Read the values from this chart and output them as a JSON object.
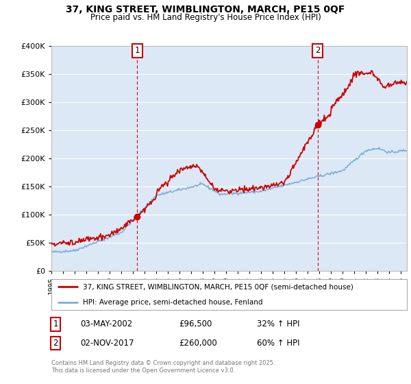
{
  "title": "37, KING STREET, WIMBLINGTON, MARCH, PE15 0QF",
  "subtitle": "Price paid vs. HM Land Registry's House Price Index (HPI)",
  "ylim": [
    0,
    400000
  ],
  "yticks": [
    0,
    50000,
    100000,
    150000,
    200000,
    250000,
    300000,
    350000,
    400000
  ],
  "legend_line1": "37, KING STREET, WIMBLINGTON, MARCH, PE15 0QF (semi-detached house)",
  "legend_line2": "HPI: Average price, semi-detached house, Fenland",
  "annotation1_date": "03-MAY-2002",
  "annotation1_price": "£96,500",
  "annotation1_hpi": "32% ↑ HPI",
  "annotation2_date": "02-NOV-2017",
  "annotation2_price": "£260,000",
  "annotation2_hpi": "60% ↑ HPI",
  "footer": "Contains HM Land Registry data © Crown copyright and database right 2025.\nThis data is licensed under the Open Government Licence v3.0.",
  "line_color_red": "#cc0000",
  "line_color_blue": "#7aaed6",
  "background_plot": "#dce8f5",
  "grid_color": "#ffffff",
  "vline_color": "#cc0000",
  "box_color": "#cc0000",
  "sale1_year": 2002.37,
  "sale1_price": 96500,
  "sale2_year": 2017.84,
  "sale2_price": 260000,
  "xstart": 1995,
  "xend": 2025.5
}
